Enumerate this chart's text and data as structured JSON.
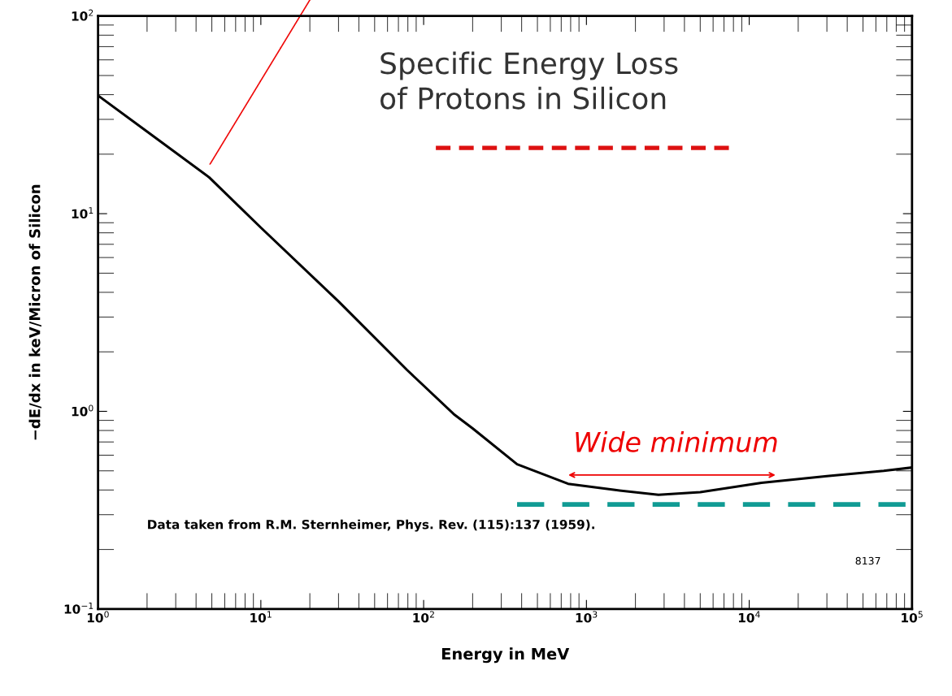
{
  "chart_data": {
    "type": "line",
    "title": "Specific Energy Loss\nof Protons in Silicon",
    "xlabel": "Energy in MeV",
    "ylabel": "−dE/dx in keV/Micron of Silicon",
    "log": "xy",
    "grid": false,
    "legend": false,
    "xlim": [
      1,
      100000
    ],
    "ylim": [
      0.1,
      100
    ],
    "xticks": [
      {
        "value": 1,
        "label": "10$^{0}$"
      },
      {
        "value": 10,
        "label": "10$^{1}$"
      },
      {
        "value": 100,
        "label": "10$^{2}$"
      },
      {
        "value": 1000,
        "label": "10$^{3}$"
      },
      {
        "value": 10000,
        "label": "10$^{4}$"
      },
      {
        "value": 100000,
        "label": "10$^{5}$"
      }
    ],
    "yticks": [
      {
        "value": 0.1,
        "label": "10$^{−1}$"
      },
      {
        "value": 1,
        "label": "10$^{0}$"
      },
      {
        "value": 10,
        "label": "10$^{1}$"
      },
      {
        "value": 100,
        "label": "10$^{2}$"
      }
    ],
    "series": [
      {
        "color": "#000000",
        "line_style": "solid",
        "x": [
          1,
          2,
          4.8,
          10,
          30,
          79,
          155,
          200,
          375,
          771,
          1500,
          2770,
          5000,
          11900,
          30000,
          67000,
          100000
        ],
        "values": [
          39.6,
          26,
          15.3,
          8.5,
          3.6,
          1.62,
          0.96,
          0.82,
          0.54,
          0.43,
          0.4,
          0.378,
          0.39,
          0.435,
          0.47,
          0.5,
          0.52
        ]
      },
      {
        "color": "#119b94",
        "line_style": "dashed",
        "x": [
          375,
          100000
        ],
        "values": [
          0.338,
          0.338
        ]
      }
    ],
    "annotations": [
      "Wide minimum",
      "Data taken from R.M. Sternheimer, Phys. Rev. (115):137 (1959).",
      "8137"
    ]
  }
}
